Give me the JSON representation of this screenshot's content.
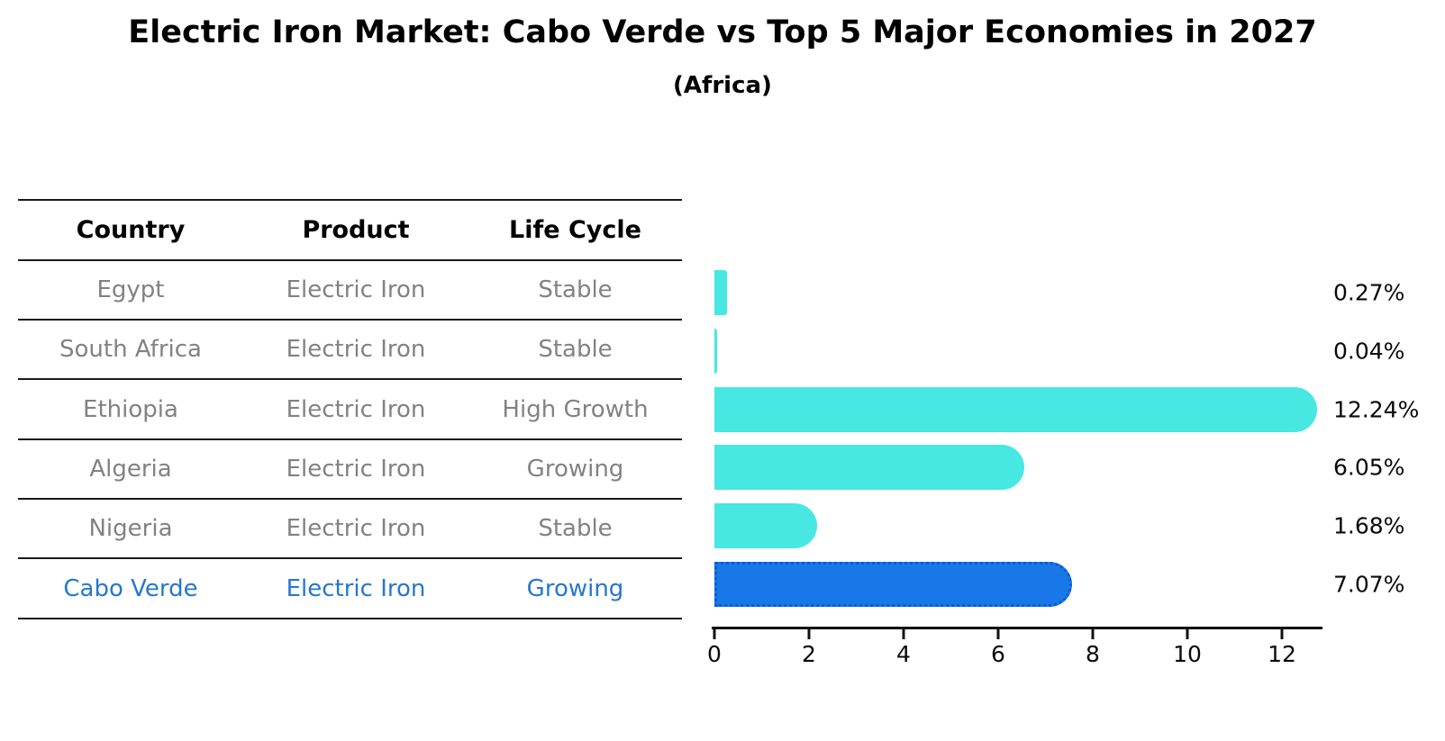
{
  "title": "Electric Iron Market: Cabo Verde vs Top 5 Major Economies in 2027",
  "subtitle": "(Africa)",
  "table": {
    "columns": [
      "Country",
      "Product",
      "Life Cycle"
    ],
    "rows": [
      {
        "country": "Egypt",
        "product": "Electric Iron",
        "life_cycle": "Stable",
        "highlight": false
      },
      {
        "country": "South Africa",
        "product": "Electric Iron",
        "life_cycle": "Stable",
        "highlight": false
      },
      {
        "country": "Ethiopia",
        "product": "Electric Iron",
        "life_cycle": "High Growth",
        "highlight": false
      },
      {
        "country": "Algeria",
        "product": "Electric Iron",
        "life_cycle": "Growing",
        "highlight": false
      },
      {
        "country": "Nigeria",
        "product": "Electric Iron",
        "life_cycle": "Stable",
        "highlight": false
      },
      {
        "country": "Cabo Verde",
        "product": "Electric Iron",
        "life_cycle": "Growing",
        "highlight": true
      }
    ]
  },
  "chart_data": {
    "type": "bar",
    "orientation": "horizontal",
    "title": "Electric Iron Market: Cabo Verde vs Top 5 Major Economies in 2027 (Africa)",
    "categories": [
      "Egypt",
      "South Africa",
      "Ethiopia",
      "Algeria",
      "Nigeria",
      "Cabo Verde"
    ],
    "values": [
      0.27,
      0.04,
      12.24,
      6.05,
      1.68,
      7.07
    ],
    "value_labels": [
      "0.27%",
      "0.04%",
      "12.24%",
      "6.05%",
      "1.68%",
      "7.07%"
    ],
    "unit": "%",
    "x_ticks": [
      0,
      2,
      4,
      6,
      8,
      10,
      12
    ],
    "xlim": [
      0,
      12.9
    ],
    "grid": false,
    "legend": false,
    "bar_color": "#47e8e2",
    "highlight_color": "#1878e8",
    "highlight_edge_color": "#0b5bd3",
    "highlight_index": 5
  },
  "colors": {
    "background": "#ffffff",
    "table_text": "#828282",
    "header_text": "#000000",
    "highlight_text": "#2577cf",
    "axis": "#111111"
  }
}
